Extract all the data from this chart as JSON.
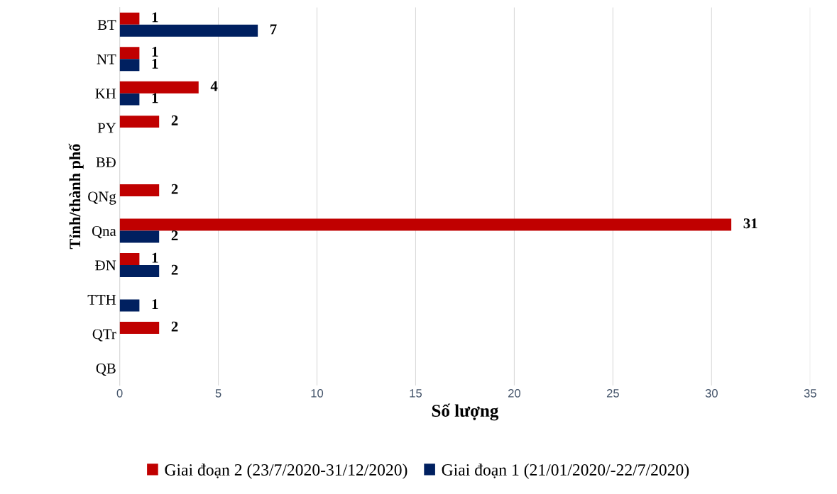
{
  "chart_data": {
    "type": "bar",
    "orientation": "horizontal",
    "categories": [
      "BT",
      "NT",
      "KH",
      "PY",
      "BĐ",
      "QNg",
      "Qna",
      "ĐN",
      "TTH",
      "QTr",
      "QB"
    ],
    "series": [
      {
        "name": "Giai đoạn 2 (23/7/2020-31/12/2020)",
        "color": "#c00000",
        "values": [
          1,
          1,
          4,
          2,
          null,
          2,
          31,
          1,
          null,
          2,
          null
        ]
      },
      {
        "name": "Giai đoạn 1 (21/01/2020/-22/7/2020)",
        "color": "#002060",
        "values": [
          7,
          1,
          1,
          null,
          null,
          null,
          2,
          2,
          1,
          null,
          null
        ]
      }
    ],
    "xlabel": "Số lượng",
    "ylabel": "Tỉnh/thành phố",
    "xlim": [
      0,
      35
    ],
    "xticks": [
      0,
      5,
      10,
      15,
      20,
      25,
      30,
      35
    ],
    "grid": "x",
    "legend": "bottom",
    "data_labels": true
  }
}
